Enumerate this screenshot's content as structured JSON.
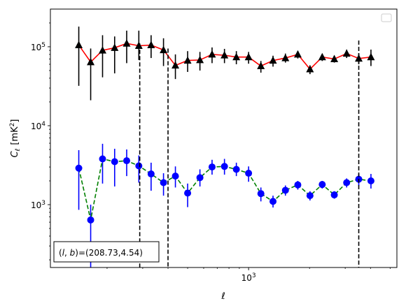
{
  "chart_data": {
    "type": "scatter",
    "title": "",
    "xlabel": "ℓ",
    "ylabel_main": "C",
    "ylabel_sub": "ℓ",
    "ylabel_unit_open": "[mK",
    "ylabel_unit_sup": "2",
    "ylabel_unit_close": "]",
    "xscale": "log",
    "yscale": "log",
    "xlim": [
      105,
      5400
    ],
    "ylim": [
      160,
      300000
    ],
    "grid": false,
    "legend": "top-right",
    "x_ticks": [
      {
        "value": 1000,
        "base": "10",
        "exp": "3"
      }
    ],
    "y_ticks": [
      {
        "value": 1000,
        "base": "10",
        "exp": "3"
      },
      {
        "value": 10000,
        "base": "10",
        "exp": "4"
      },
      {
        "value": 100000,
        "base": "10",
        "exp": "5"
      }
    ],
    "vlines": [
      {
        "x": 290,
        "y_top": 110000
      },
      {
        "x": 400,
        "y_top": 95000
      },
      {
        "x": 3500,
        "y_top": 120000
      }
    ],
    "annotation": {
      "text": "(l, b)=(208.73,4.54)",
      "l": "l",
      "b": "b",
      "values": "=(208.73,4.54)"
    },
    "series": [
      {
        "color": "#000000",
        "line_color": "#ff0000",
        "line_style": "solid",
        "marker": "triangle",
        "points": [
          {
            "x": 145,
            "y": 105000,
            "lo": 32000,
            "hi": 180000
          },
          {
            "x": 166,
            "y": 64000,
            "lo": 21000,
            "hi": 95000
          },
          {
            "x": 190,
            "y": 90000,
            "lo": 41000,
            "hi": 140000
          },
          {
            "x": 218,
            "y": 97000,
            "lo": 46000,
            "hi": 135000
          },
          {
            "x": 250,
            "y": 110000,
            "lo": 62000,
            "hi": 160000
          },
          {
            "x": 287,
            "y": 103000,
            "lo": 68000,
            "hi": 160000
          },
          {
            "x": 330,
            "y": 105000,
            "lo": 72000,
            "hi": 140000
          },
          {
            "x": 380,
            "y": 91000,
            "lo": 57000,
            "hi": 128000
          },
          {
            "x": 435,
            "y": 58000,
            "lo": 39000,
            "hi": 80000
          },
          {
            "x": 500,
            "y": 67000,
            "lo": 48000,
            "hi": 88000
          },
          {
            "x": 575,
            "y": 68000,
            "lo": 50000,
            "hi": 86000
          },
          {
            "x": 660,
            "y": 80000,
            "lo": 62000,
            "hi": 98000
          },
          {
            "x": 760,
            "y": 78000,
            "lo": 62000,
            "hi": 94000
          },
          {
            "x": 870,
            "y": 74000,
            "lo": 60000,
            "hi": 88000
          },
          {
            "x": 1000,
            "y": 74000,
            "lo": 61000,
            "hi": 86000
          },
          {
            "x": 1150,
            "y": 57000,
            "lo": 47000,
            "hi": 66000
          },
          {
            "x": 1320,
            "y": 67000,
            "lo": 56000,
            "hi": 77000
          },
          {
            "x": 1520,
            "y": 72000,
            "lo": 63000,
            "hi": 82000
          },
          {
            "x": 1750,
            "y": 80000,
            "lo": 71000,
            "hi": 88000
          },
          {
            "x": 2010,
            "y": 52000,
            "lo": 45000,
            "hi": 58000
          },
          {
            "x": 2310,
            "y": 74000,
            "lo": 66000,
            "hi": 80000
          },
          {
            "x": 2650,
            "y": 70000,
            "lo": 63000,
            "hi": 77000
          },
          {
            "x": 3050,
            "y": 82000,
            "lo": 72000,
            "hi": 92000
          },
          {
            "x": 3500,
            "y": 71000,
            "lo": 60000,
            "hi": 82000
          },
          {
            "x": 4020,
            "y": 74000,
            "lo": 57000,
            "hi": 92000
          }
        ]
      },
      {
        "color": "#0000ff",
        "line_color": "#008000",
        "line_style": "dashed",
        "marker": "circle",
        "points": [
          {
            "x": 145,
            "y": 2900,
            "lo": 860,
            "hi": 4900
          },
          {
            "x": 166,
            "y": 640,
            "lo": 160,
            "hi": 1000
          },
          {
            "x": 190,
            "y": 3800,
            "lo": 1850,
            "hi": 5900
          },
          {
            "x": 218,
            "y": 3500,
            "lo": 1700,
            "hi": 5100
          },
          {
            "x": 250,
            "y": 3600,
            "lo": 2300,
            "hi": 5000
          },
          {
            "x": 287,
            "y": 3100,
            "lo": 1900,
            "hi": 4200
          },
          {
            "x": 330,
            "y": 2450,
            "lo": 1500,
            "hi": 3400
          },
          {
            "x": 380,
            "y": 1900,
            "lo": 1300,
            "hi": 2500
          },
          {
            "x": 435,
            "y": 2300,
            "lo": 1650,
            "hi": 3050
          },
          {
            "x": 500,
            "y": 1400,
            "lo": 930,
            "hi": 1850
          },
          {
            "x": 575,
            "y": 2200,
            "lo": 1700,
            "hi": 2800
          },
          {
            "x": 660,
            "y": 3000,
            "lo": 2400,
            "hi": 3700
          },
          {
            "x": 760,
            "y": 3050,
            "lo": 2400,
            "hi": 3800
          },
          {
            "x": 870,
            "y": 2800,
            "lo": 2300,
            "hi": 3400
          },
          {
            "x": 1000,
            "y": 2500,
            "lo": 1950,
            "hi": 3050
          },
          {
            "x": 1150,
            "y": 1380,
            "lo": 1100,
            "hi": 1650
          },
          {
            "x": 1320,
            "y": 1100,
            "lo": 920,
            "hi": 1300
          },
          {
            "x": 1520,
            "y": 1520,
            "lo": 1300,
            "hi": 1750
          },
          {
            "x": 1750,
            "y": 1780,
            "lo": 1550,
            "hi": 2000
          },
          {
            "x": 2010,
            "y": 1300,
            "lo": 1130,
            "hi": 1480
          },
          {
            "x": 2310,
            "y": 1800,
            "lo": 1600,
            "hi": 2000
          },
          {
            "x": 2650,
            "y": 1330,
            "lo": 1190,
            "hi": 1480
          },
          {
            "x": 3050,
            "y": 1900,
            "lo": 1650,
            "hi": 2150
          },
          {
            "x": 3500,
            "y": 2100,
            "lo": 1750,
            "hi": 2450
          },
          {
            "x": 4020,
            "y": 2000,
            "lo": 1600,
            "hi": 2450
          }
        ]
      }
    ]
  }
}
